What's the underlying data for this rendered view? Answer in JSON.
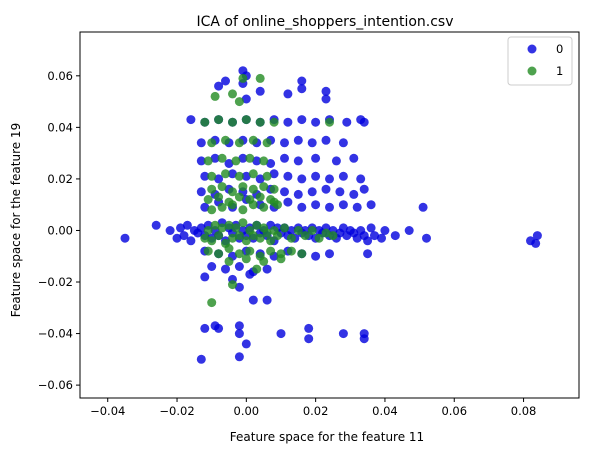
{
  "chart_data": {
    "type": "scatter",
    "title": "ICA of online_shoppers_intention.csv",
    "xlabel": "Feature space for the feature 11",
    "ylabel": "Feature space for the feature 19",
    "xlim": [
      -0.048,
      0.096
    ],
    "ylim": [
      -0.065,
      0.077
    ],
    "xticks": [
      -0.04,
      -0.02,
      0.0,
      0.02,
      0.04,
      0.06,
      0.08
    ],
    "xtick_labels": [
      "−0.04",
      "−0.02",
      "0.00",
      "0.02",
      "0.04",
      "0.06",
      "0.08"
    ],
    "yticks": [
      -0.06,
      -0.04,
      -0.02,
      0.0,
      0.02,
      0.04,
      0.06
    ],
    "ytick_labels": [
      "−0.06",
      "−0.04",
      "−0.02",
      "0.00",
      "0.02",
      "0.04",
      "0.06"
    ],
    "grid": false,
    "legend_position": "top-right",
    "colors": {
      "0": "#0000dd",
      "1": "#228b22"
    },
    "series": [
      {
        "name": "0",
        "color": "#0000dd",
        "points": [
          [
            -0.035,
            -0.003
          ],
          [
            -0.026,
            0.002
          ],
          [
            -0.022,
            0.0
          ],
          [
            -0.02,
            -0.003
          ],
          [
            -0.019,
            0.001
          ],
          [
            -0.018,
            -0.002
          ],
          [
            -0.017,
            0.002
          ],
          [
            -0.016,
            -0.004
          ],
          [
            -0.015,
            0.0
          ],
          [
            -0.014,
            -0.001
          ],
          [
            -0.013,
            0.001
          ],
          [
            -0.012,
            -0.002
          ],
          [
            -0.011,
            0.002
          ],
          [
            -0.01,
            -0.003
          ],
          [
            -0.009,
            0.0
          ],
          [
            -0.008,
            -0.002
          ],
          [
            -0.007,
            0.003
          ],
          [
            -0.006,
            -0.004
          ],
          [
            -0.005,
            0.001
          ],
          [
            -0.004,
            -0.001
          ],
          [
            -0.003,
            0.002
          ],
          [
            -0.002,
            -0.003
          ],
          [
            -0.001,
            0.0
          ],
          [
            0.0,
            -0.002
          ],
          [
            0.001,
            0.001
          ],
          [
            0.002,
            -0.003
          ],
          [
            0.003,
            0.002
          ],
          [
            0.004,
            -0.001
          ],
          [
            0.005,
            0.0
          ],
          [
            0.006,
            -0.002
          ],
          [
            0.007,
            0.002
          ],
          [
            0.008,
            -0.004
          ],
          [
            0.009,
            0.001
          ],
          [
            0.01,
            -0.001
          ],
          [
            0.011,
            0.001
          ],
          [
            0.012,
            -0.002
          ],
          [
            0.013,
            0.0
          ],
          [
            0.014,
            -0.003
          ],
          [
            0.015,
            0.001
          ],
          [
            0.016,
            -0.001
          ],
          [
            0.017,
            0.0
          ],
          [
            0.018,
            -0.002
          ],
          [
            0.019,
            0.001
          ],
          [
            0.02,
            -0.003
          ],
          [
            0.021,
            0.0
          ],
          [
            0.022,
            -0.001
          ],
          [
            0.023,
            0.001
          ],
          [
            0.024,
            -0.002
          ],
          [
            0.025,
            0.0
          ],
          [
            0.026,
            -0.003
          ],
          [
            0.027,
            -0.001
          ],
          [
            0.028,
            0.001
          ],
          [
            0.029,
            -0.002
          ],
          [
            0.03,
            0.0
          ],
          [
            0.031,
            -0.001
          ],
          [
            0.032,
            -0.003
          ],
          [
            0.033,
            0.0
          ],
          [
            0.034,
            -0.002
          ],
          [
            0.035,
            -0.004
          ],
          [
            0.036,
            0.001
          ],
          [
            0.037,
            -0.002
          ],
          [
            0.039,
            -0.003
          ],
          [
            0.04,
            0.0
          ],
          [
            0.043,
            -0.002
          ],
          [
            0.047,
            0.0
          ],
          [
            0.052,
            -0.003
          ],
          [
            0.082,
            -0.004
          ],
          [
            0.084,
            -0.002
          ],
          [
            0.0835,
            -0.005
          ],
          [
            -0.012,
            0.009
          ],
          [
            -0.008,
            0.011
          ],
          [
            -0.004,
            0.009
          ],
          [
            0.0,
            0.012
          ],
          [
            0.004,
            0.01
          ],
          [
            0.008,
            0.009
          ],
          [
            0.012,
            0.011
          ],
          [
            0.016,
            0.009
          ],
          [
            0.02,
            0.01
          ],
          [
            0.024,
            0.009
          ],
          [
            0.028,
            0.01
          ],
          [
            0.032,
            0.009
          ],
          [
            0.036,
            0.01
          ],
          [
            0.051,
            0.009
          ],
          [
            -0.013,
            0.015
          ],
          [
            -0.009,
            0.014
          ],
          [
            -0.005,
            0.016
          ],
          [
            -0.001,
            0.015
          ],
          [
            0.003,
            0.014
          ],
          [
            0.007,
            0.016
          ],
          [
            0.011,
            0.015
          ],
          [
            0.015,
            0.014
          ],
          [
            0.019,
            0.015
          ],
          [
            0.023,
            0.016
          ],
          [
            0.027,
            0.015
          ],
          [
            0.031,
            0.014
          ],
          [
            0.034,
            0.016
          ],
          [
            -0.012,
            0.021
          ],
          [
            -0.008,
            0.02
          ],
          [
            -0.004,
            0.022
          ],
          [
            0.0,
            0.021
          ],
          [
            0.004,
            0.02
          ],
          [
            0.008,
            0.022
          ],
          [
            0.012,
            0.021
          ],
          [
            0.016,
            0.02
          ],
          [
            0.02,
            0.021
          ],
          [
            0.024,
            0.02
          ],
          [
            0.028,
            0.021
          ],
          [
            0.033,
            0.02
          ],
          [
            -0.013,
            0.027
          ],
          [
            -0.009,
            0.028
          ],
          [
            -0.005,
            0.026
          ],
          [
            -0.001,
            0.028
          ],
          [
            0.003,
            0.027
          ],
          [
            0.007,
            0.026
          ],
          [
            0.011,
            0.028
          ],
          [
            0.015,
            0.027
          ],
          [
            0.02,
            0.028
          ],
          [
            0.026,
            0.027
          ],
          [
            0.031,
            0.028
          ],
          [
            -0.013,
            0.034
          ],
          [
            -0.009,
            0.035
          ],
          [
            -0.005,
            0.034
          ],
          [
            -0.001,
            0.035
          ],
          [
            0.003,
            0.034
          ],
          [
            0.007,
            0.035
          ],
          [
            0.011,
            0.034
          ],
          [
            0.015,
            0.035
          ],
          [
            0.019,
            0.034
          ],
          [
            0.023,
            0.035
          ],
          [
            0.028,
            0.034
          ],
          [
            -0.016,
            0.043
          ],
          [
            -0.012,
            0.042
          ],
          [
            -0.008,
            0.043
          ],
          [
            -0.004,
            0.042
          ],
          [
            0.0,
            0.043
          ],
          [
            0.004,
            0.042
          ],
          [
            0.008,
            0.043
          ],
          [
            0.012,
            0.042
          ],
          [
            0.016,
            0.043
          ],
          [
            0.02,
            0.042
          ],
          [
            0.024,
            0.043
          ],
          [
            0.029,
            0.042
          ],
          [
            0.033,
            0.043
          ],
          [
            0.034,
            0.042
          ],
          [
            -0.001,
            0.062
          ],
          [
            0.0,
            0.06
          ],
          [
            -0.001,
            0.057
          ],
          [
            -0.008,
            0.056
          ],
          [
            -0.006,
            0.058
          ],
          [
            0.004,
            0.054
          ],
          [
            0.012,
            0.053
          ],
          [
            0.016,
            0.058
          ],
          [
            0.016,
            0.055
          ],
          [
            0.023,
            0.051
          ],
          [
            0.023,
            0.054
          ],
          [
            0.0,
            0.051
          ],
          [
            -0.012,
            -0.008
          ],
          [
            -0.008,
            -0.009
          ],
          [
            -0.004,
            -0.01
          ],
          [
            0.0,
            -0.008
          ],
          [
            0.004,
            -0.009
          ],
          [
            0.008,
            -0.01
          ],
          [
            0.012,
            -0.008
          ],
          [
            0.016,
            -0.009
          ],
          [
            0.02,
            -0.01
          ],
          [
            0.024,
            -0.009
          ],
          [
            0.035,
            -0.009
          ],
          [
            -0.01,
            -0.014
          ],
          [
            -0.006,
            -0.015
          ],
          [
            -0.002,
            -0.014
          ],
          [
            0.002,
            -0.016
          ],
          [
            0.006,
            -0.015
          ],
          [
            -0.012,
            -0.018
          ],
          [
            -0.004,
            -0.019
          ],
          [
            0.001,
            -0.017
          ],
          [
            -0.002,
            -0.022
          ],
          [
            0.002,
            -0.027
          ],
          [
            0.006,
            -0.027
          ],
          [
            -0.009,
            -0.037
          ],
          [
            -0.008,
            -0.038
          ],
          [
            -0.002,
            -0.037
          ],
          [
            -0.002,
            -0.04
          ],
          [
            0.01,
            -0.04
          ],
          [
            0.018,
            -0.038
          ],
          [
            0.018,
            -0.042
          ],
          [
            0.034,
            -0.04
          ],
          [
            0.034,
            -0.042
          ],
          [
            -0.012,
            -0.038
          ],
          [
            -0.013,
            -0.05
          ],
          [
            -0.002,
            -0.049
          ],
          [
            0.0,
            -0.044
          ],
          [
            0.028,
            -0.04
          ]
        ]
      },
      {
        "name": "1",
        "color": "#228b22",
        "points": [
          [
            -0.012,
            -0.003
          ],
          [
            -0.011,
            0.0
          ],
          [
            -0.01,
            -0.004
          ],
          [
            -0.009,
            0.002
          ],
          [
            -0.008,
            -0.002
          ],
          [
            -0.007,
            0.001
          ],
          [
            -0.006,
            -0.005
          ],
          [
            -0.005,
            0.002
          ],
          [
            -0.004,
            -0.003
          ],
          [
            -0.003,
            0.001
          ],
          [
            -0.002,
            -0.002
          ],
          [
            -0.001,
            0.003
          ],
          [
            0.0,
            -0.004
          ],
          [
            0.001,
            0.0
          ],
          [
            0.002,
            -0.002
          ],
          [
            0.003,
            0.002
          ],
          [
            0.004,
            -0.003
          ],
          [
            0.005,
            0.001
          ],
          [
            0.006,
            -0.001
          ],
          [
            0.007,
            -0.004
          ],
          [
            0.008,
            0.0
          ],
          [
            0.009,
            -0.002
          ],
          [
            0.011,
            0.001
          ],
          [
            0.013,
            -0.003
          ],
          [
            0.015,
            0.0
          ],
          [
            0.017,
            -0.002
          ],
          [
            0.019,
            0.0
          ],
          [
            0.021,
            -0.003
          ],
          [
            0.023,
            -0.001
          ],
          [
            0.025,
            -0.002
          ],
          [
            -0.011,
            -0.008
          ],
          [
            -0.008,
            -0.009
          ],
          [
            -0.005,
            -0.007
          ],
          [
            -0.002,
            -0.009
          ],
          [
            0.001,
            -0.008
          ],
          [
            0.004,
            -0.01
          ],
          [
            0.007,
            -0.008
          ],
          [
            0.01,
            -0.009
          ],
          [
            0.013,
            -0.008
          ],
          [
            0.016,
            -0.009
          ],
          [
            -0.005,
            -0.012
          ],
          [
            0.0,
            -0.011
          ],
          [
            0.005,
            -0.012
          ],
          [
            0.003,
            -0.015
          ],
          [
            0.01,
            -0.011
          ],
          [
            -0.01,
            0.008
          ],
          [
            -0.007,
            0.009
          ],
          [
            -0.004,
            0.01
          ],
          [
            -0.001,
            0.008
          ],
          [
            0.002,
            0.01
          ],
          [
            0.005,
            0.009
          ],
          [
            0.008,
            0.011
          ],
          [
            -0.011,
            0.012
          ],
          [
            -0.008,
            0.013
          ],
          [
            -0.005,
            0.011
          ],
          [
            -0.002,
            0.013
          ],
          [
            0.001,
            0.012
          ],
          [
            0.004,
            0.013
          ],
          [
            0.007,
            0.012
          ],
          [
            0.009,
            0.01
          ],
          [
            -0.01,
            0.016
          ],
          [
            -0.007,
            0.017
          ],
          [
            -0.004,
            0.015
          ],
          [
            -0.001,
            0.017
          ],
          [
            0.002,
            0.016
          ],
          [
            0.005,
            0.017
          ],
          [
            0.008,
            0.016
          ],
          [
            -0.01,
            0.021
          ],
          [
            -0.006,
            0.022
          ],
          [
            -0.002,
            0.021
          ],
          [
            0.002,
            0.022
          ],
          [
            0.006,
            0.021
          ],
          [
            -0.011,
            0.027
          ],
          [
            -0.007,
            0.028
          ],
          [
            -0.003,
            0.027
          ],
          [
            0.001,
            0.028
          ],
          [
            0.005,
            0.027
          ],
          [
            -0.01,
            0.034
          ],
          [
            -0.006,
            0.035
          ],
          [
            -0.002,
            0.034
          ],
          [
            0.002,
            0.035
          ],
          [
            0.006,
            0.034
          ],
          [
            -0.012,
            0.042
          ],
          [
            -0.008,
            0.043
          ],
          [
            -0.004,
            0.042
          ],
          [
            0.0,
            0.043
          ],
          [
            0.004,
            0.042
          ],
          [
            0.008,
            0.042
          ],
          [
            0.024,
            0.042
          ],
          [
            -0.009,
            0.052
          ],
          [
            -0.004,
            0.053
          ],
          [
            -0.001,
            0.059
          ],
          [
            0.004,
            0.059
          ],
          [
            -0.002,
            0.05
          ],
          [
            -0.004,
            -0.021
          ],
          [
            -0.01,
            -0.028
          ]
        ]
      }
    ]
  }
}
